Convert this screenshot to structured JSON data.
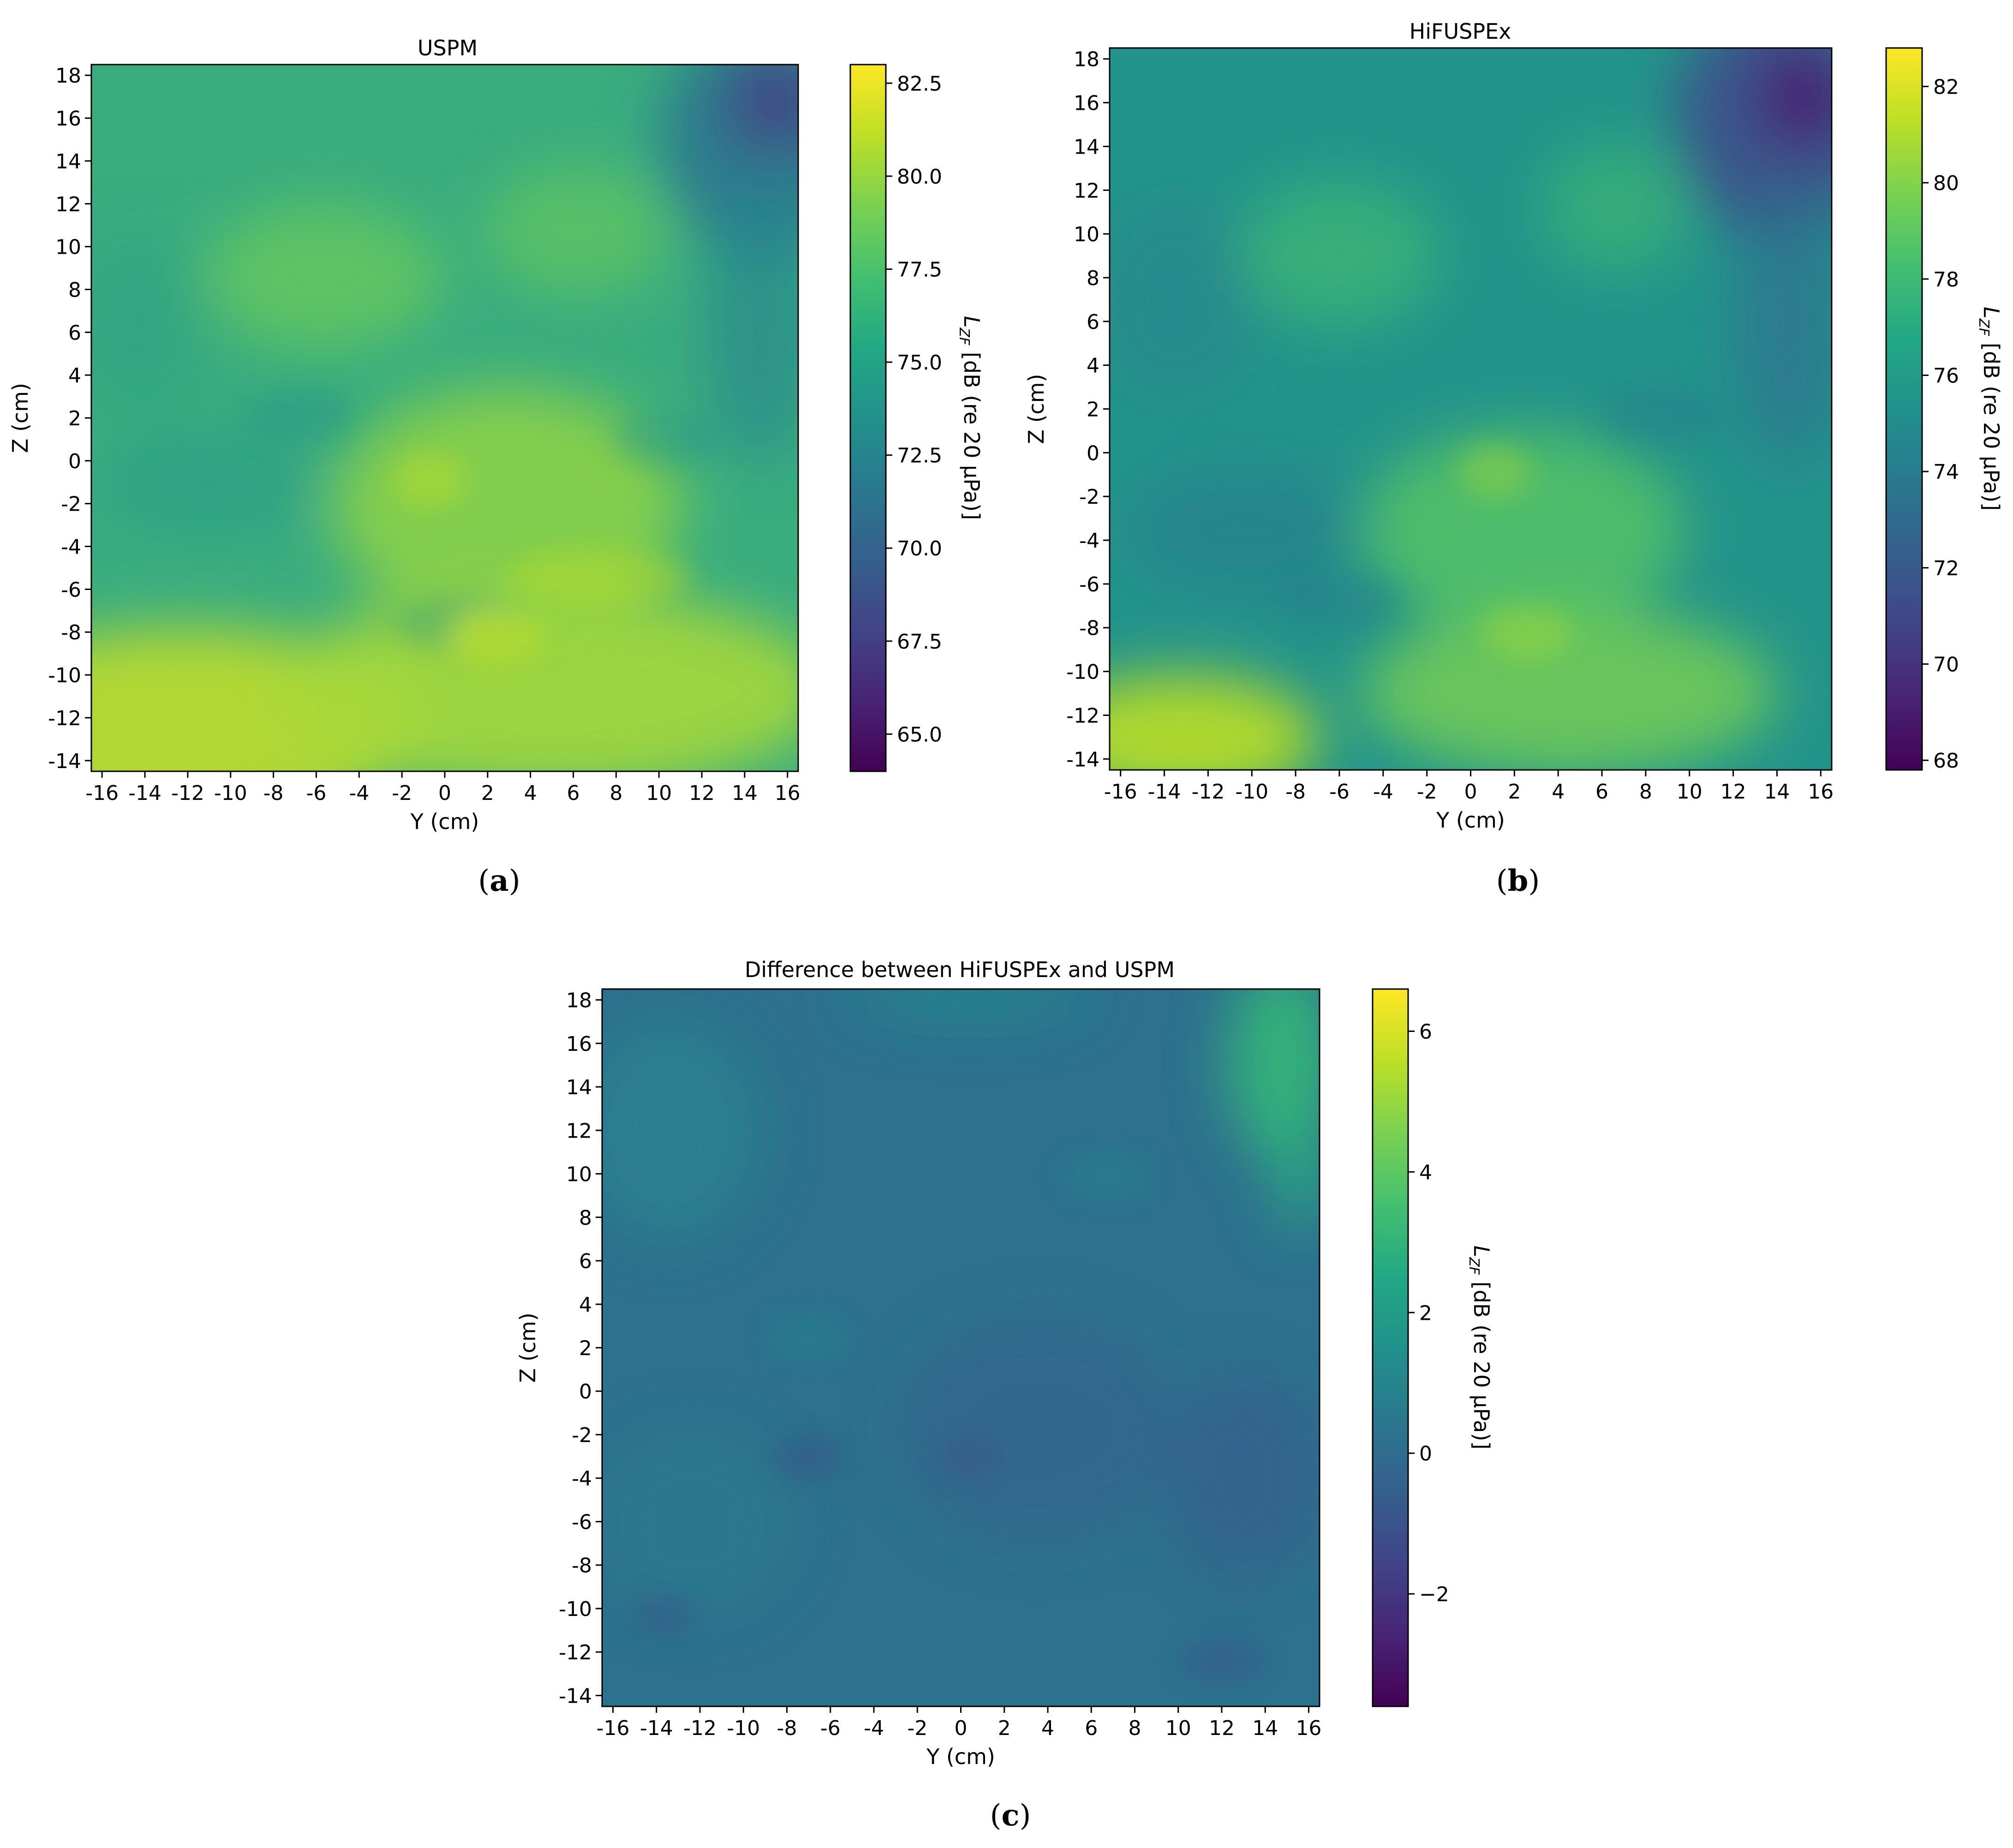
{
  "chart_data": [
    {
      "type": "heatmap",
      "title": "USPM",
      "xlabel": "Y (cm)",
      "ylabel": "Z (cm)",
      "xlim": [
        -16.5,
        16.5
      ],
      "ylim": [
        -14.5,
        18.5
      ],
      "xticks": [
        "-16",
        "-14",
        "-12",
        "-10",
        "-8",
        "-6",
        "-4",
        "-2",
        "0",
        "2",
        "4",
        "6",
        "8",
        "10",
        "12",
        "14",
        "16"
      ],
      "yticks": [
        "-14",
        "-12",
        "-10",
        "-8",
        "-6",
        "-4",
        "-2",
        "0",
        "2",
        "4",
        "6",
        "8",
        "10",
        "12",
        "14",
        "16",
        "18"
      ],
      "colorbar": {
        "label": "L_ZF [dB (re 20 µPa)]",
        "min": 64.0,
        "max": 83.0,
        "ticks": [
          "65.0",
          "67.5",
          "70.0",
          "72.5",
          "75.0",
          "77.5",
          "80.0",
          "82.5"
        ]
      },
      "colormap": "viridis",
      "caption": "(a)",
      "caption_letter": "a"
    },
    {
      "type": "heatmap",
      "title": "HiFUSPEx",
      "xlabel": "Y (cm)",
      "ylabel": "Z (cm)",
      "xlim": [
        -16.5,
        16.5
      ],
      "ylim": [
        -14.5,
        18.5
      ],
      "xticks": [
        "-16",
        "-14",
        "-12",
        "-10",
        "-8",
        "-6",
        "-4",
        "-2",
        "0",
        "2",
        "4",
        "6",
        "8",
        "10",
        "12",
        "14",
        "16"
      ],
      "yticks": [
        "-14",
        "-12",
        "-10",
        "-8",
        "-6",
        "-4",
        "-2",
        "0",
        "2",
        "4",
        "6",
        "8",
        "10",
        "12",
        "14",
        "16",
        "18"
      ],
      "colorbar": {
        "label": "L_ZF [dB (re 20 µPa)]",
        "min": 67.8,
        "max": 82.8,
        "ticks": [
          "68",
          "70",
          "72",
          "74",
          "76",
          "78",
          "80",
          "82"
        ]
      },
      "colormap": "viridis",
      "caption": "(b)",
      "caption_letter": "b"
    },
    {
      "type": "heatmap",
      "title": "Difference between HiFUSPEx and USPM",
      "xlabel": "Y (cm)",
      "ylabel": "Z (cm)",
      "xlim": [
        -16.5,
        16.5
      ],
      "ylim": [
        -14.5,
        18.5
      ],
      "xticks": [
        "-16",
        "-14",
        "-12",
        "-10",
        "-8",
        "-6",
        "-4",
        "-2",
        "0",
        "2",
        "4",
        "6",
        "8",
        "10",
        "12",
        "14",
        "16"
      ],
      "yticks": [
        "-14",
        "-12",
        "-10",
        "-8",
        "-6",
        "-4",
        "-2",
        "0",
        "2",
        "4",
        "6",
        "8",
        "10",
        "12",
        "14",
        "16",
        "18"
      ],
      "colorbar": {
        "label": "L_ZF [dB (re 20 µPa)]",
        "min": -3.6,
        "max": 6.6,
        "ticks": [
          "−2",
          "0",
          "2",
          "4",
          "6"
        ]
      },
      "colormap": "viridis",
      "caption": "(c)",
      "caption_letter": "c"
    }
  ]
}
